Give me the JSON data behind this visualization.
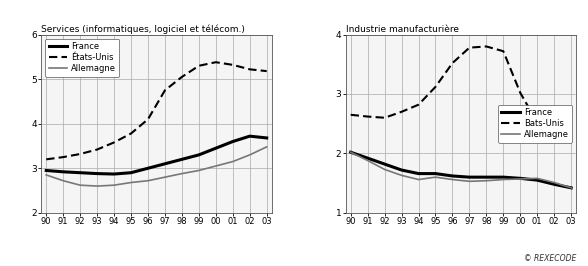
{
  "years": [
    90,
    91,
    92,
    93,
    94,
    95,
    96,
    97,
    98,
    99,
    0,
    1,
    2,
    3
  ],
  "left_title": "Services (informatiques, logiciel et télécom.)",
  "right_title": "Industrie manufacturière",
  "copyright": "© REXECODE",
  "left_france": [
    2.95,
    2.92,
    2.9,
    2.88,
    2.87,
    2.9,
    3.0,
    3.1,
    3.2,
    3.3,
    3.45,
    3.6,
    3.72,
    3.68
  ],
  "left_etatsunis": [
    3.2,
    3.25,
    3.32,
    3.42,
    3.58,
    3.78,
    4.1,
    4.75,
    5.05,
    5.3,
    5.38,
    5.32,
    5.22,
    5.18
  ],
  "left_allemagne": [
    2.85,
    2.72,
    2.62,
    2.6,
    2.62,
    2.68,
    2.72,
    2.8,
    2.88,
    2.95,
    3.05,
    3.15,
    3.3,
    3.48
  ],
  "right_france": [
    2.02,
    1.92,
    1.82,
    1.72,
    1.66,
    1.66,
    1.62,
    1.6,
    1.6,
    1.6,
    1.58,
    1.55,
    1.48,
    1.42
  ],
  "right_etatsunis": [
    2.65,
    2.62,
    2.6,
    2.7,
    2.82,
    3.12,
    3.52,
    3.78,
    3.8,
    3.72,
    3.02,
    2.52,
    2.46,
    2.46
  ],
  "right_allemagne": [
    2.02,
    1.88,
    1.73,
    1.63,
    1.56,
    1.6,
    1.56,
    1.53,
    1.54,
    1.56,
    1.57,
    1.58,
    1.51,
    1.42
  ],
  "left_ylim": [
    2.0,
    6.0
  ],
  "left_yticks": [
    2,
    3,
    4,
    5,
    6
  ],
  "right_ylim": [
    1.0,
    4.0
  ],
  "right_yticks": [
    1,
    2,
    3,
    4
  ],
  "france_lw": 2.2,
  "etatsunis_lw": 1.5,
  "allemagne_lw": 1.2,
  "france_color": "#000000",
  "etatsunis_color": "#000000",
  "allemagne_color": "#777777",
  "bg_color": "#f5f5f5",
  "fig_bg": "#ffffff",
  "grid_color": "#aaaaaa",
  "grid_lw": 0.5
}
